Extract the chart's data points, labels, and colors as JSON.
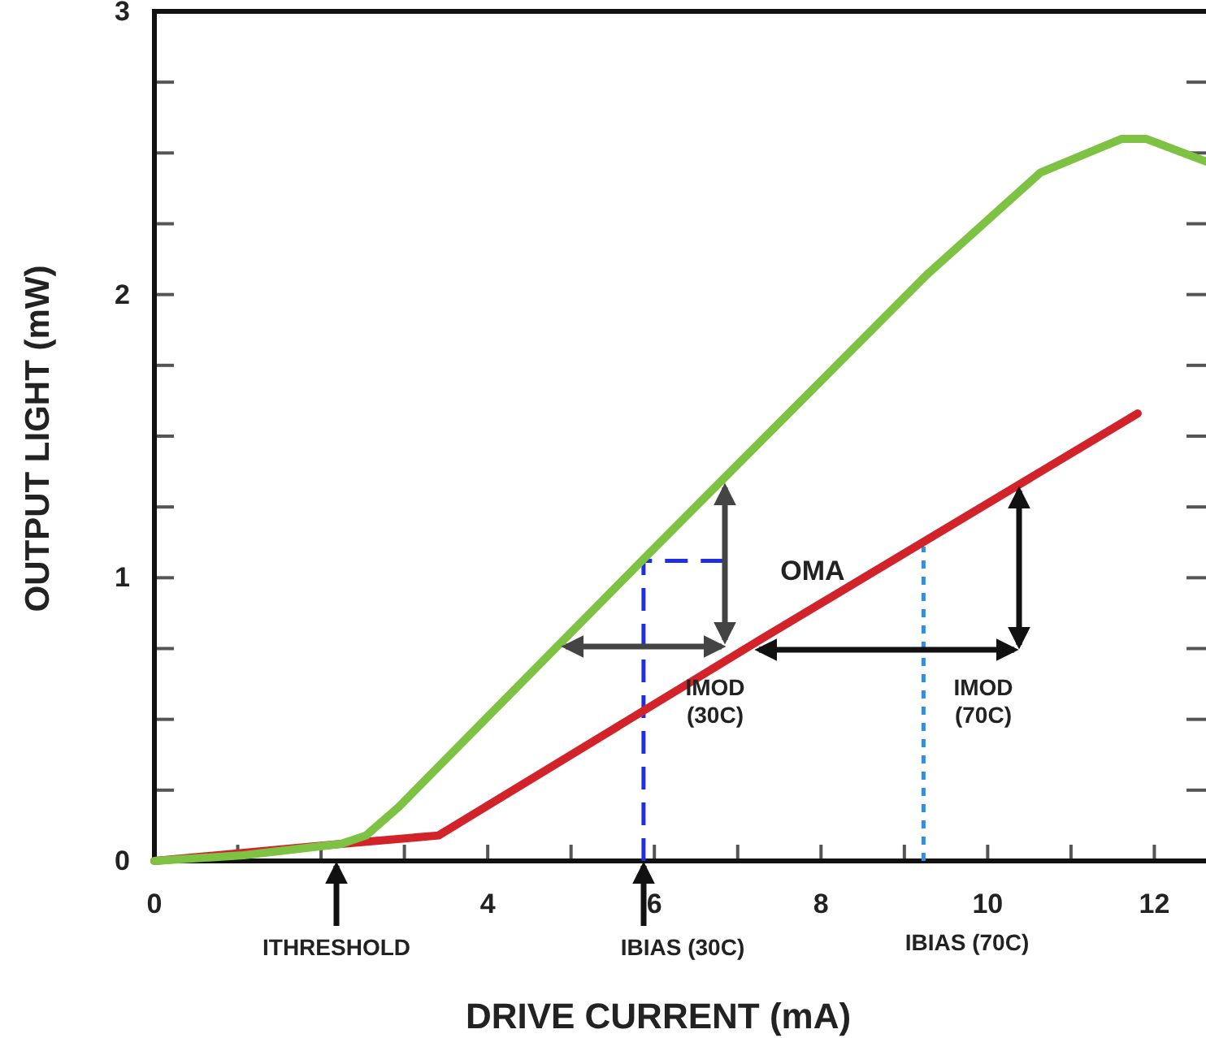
{
  "chart_data": {
    "type": "line",
    "xlabel": "DRIVE CURRENT (mA)",
    "ylabel": "OUTPUT LIGHT (mW)",
    "xlim": [
      0,
      12.62
    ],
    "ylim": [
      0,
      3
    ],
    "xticks": [
      0,
      {
        "value": 1,
        "label": null
      },
      {
        "value": 2,
        "label": null
      },
      {
        "value": 3,
        "label": null
      },
      4,
      {
        "value": 5,
        "label": null
      },
      6,
      {
        "value": 7,
        "label": null
      },
      8,
      {
        "value": 9,
        "label": null
      },
      10,
      {
        "value": 11,
        "label": null
      },
      12
    ],
    "yticks": [
      0,
      {
        "value": 0.25,
        "label": null
      },
      {
        "value": 0.5,
        "label": null
      },
      {
        "value": 0.75,
        "label": null
      },
      1,
      {
        "value": 1.25,
        "label": null
      },
      {
        "value": 1.5,
        "label": null
      },
      {
        "value": 1.75,
        "label": null
      },
      2,
      {
        "value": 2.25,
        "label": null
      },
      {
        "value": 2.5,
        "label": null
      },
      {
        "value": 2.75,
        "label": null
      },
      3
    ],
    "grid": false,
    "marker": "none",
    "series": [
      {
        "color": "#7dc242",
        "line_style": "solid",
        "x": [
          0,
          1.07,
          2.24,
          2.54,
          2.93,
          5.95,
          9.27,
          10.63,
          11.61,
          11.9,
          12.62
        ],
        "values": [
          0,
          0.02,
          0.06,
          0.09,
          0.19,
          1.09,
          2.07,
          2.43,
          2.55,
          2.55,
          2.47
        ]
      },
      {
        "color": "#d2232a",
        "line_style": "solid",
        "x": [
          0,
          2.24,
          3.41,
          7.32,
          11.8
        ],
        "values": [
          0,
          0.06,
          0.09,
          0.79,
          1.58
        ]
      },
      {
        "color": "#1f2ee0",
        "line_style": "dashed",
        "x": [
          5.87,
          5.87,
          6.83
        ],
        "values": [
          0,
          1.06,
          1.06
        ]
      },
      {
        "color": "#2f8fe0",
        "line_style": "dotted",
        "x": [
          9.23,
          9.23
        ],
        "values": [
          0,
          1.11
        ]
      }
    ],
    "annotations": [
      "ITHRESHOLD",
      "IBIAS (30C)",
      "IBIAS (70C)",
      "OMA",
      "IMOD (30C)",
      "IMOD (70C)"
    ]
  }
}
